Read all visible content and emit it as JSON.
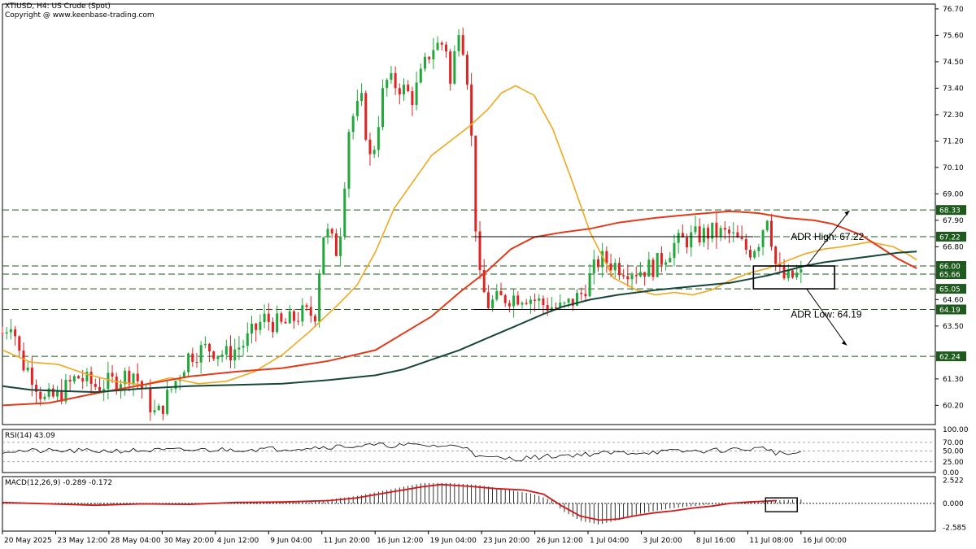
{
  "header": {
    "title": "XTIUSD, H4:  US Crude (Spot)",
    "copyright": "Copyright @ www.keenbase-trading.com"
  },
  "colors": {
    "bull": "#22a83a",
    "bear": "#e02424",
    "ema_fast": "#f0a81e",
    "ema_mid": "#e23a1a",
    "ema_slow": "#17463a",
    "grid_dash": "#1e5a1e",
    "box": "#000000",
    "rsi_line": "#000000",
    "macd_signal": "#d01818",
    "macd_hist": "#000000",
    "price_label_bg": "#1e5a1e",
    "price_label_text": "#ffffff"
  },
  "chart_data": [
    {
      "type": "candlestick",
      "panel": "price",
      "ylim": [
        59.4,
        76.9
      ],
      "y_ticks": [
        "76.70",
        "75.60",
        "74.50",
        "73.40",
        "72.30",
        "71.20",
        "70.10",
        "69.00",
        "67.90",
        "66.80",
        "65.60",
        "64.60",
        "63.50",
        "61.30",
        "60.20"
      ],
      "x_labels": [
        "20 May 2025",
        "23 May 12:00",
        "28 May 04:00",
        "30 May 20:00",
        "4 Jun 12:00",
        "9 Jun 04:00",
        "11 Jun 20:00",
        "16 Jun 12:00",
        "19 Jun 04:00",
        "23 Jun 20:00",
        "26 Jun 12:00",
        "1 Jul 04:00",
        "3 Jul 20:00",
        "8 Jul 16:00",
        "11 Jul 08:00",
        "16 Jul 00:00"
      ],
      "levels": [
        {
          "value": 68.33,
          "label": "68.33"
        },
        {
          "value": 67.22,
          "label": "67.22"
        },
        {
          "value": 66.0,
          "label": "66.00"
        },
        {
          "value": 65.66,
          "label": "65.66"
        },
        {
          "value": 65.05,
          "label": "65.05"
        },
        {
          "value": 64.19,
          "label": "64.19"
        },
        {
          "value": 62.24,
          "label": "62.24"
        }
      ],
      "annotations": [
        {
          "text": "ADR High: 67.22",
          "direction": "up"
        },
        {
          "text": "ADR Low: 64.19",
          "direction": "down"
        }
      ],
      "series": [
        {
          "role": "ema_fast",
          "points": [
            [
              0,
              62.5
            ],
            [
              0.03,
              62.0
            ],
            [
              0.06,
              61.9
            ],
            [
              0.09,
              61.5
            ],
            [
              0.12,
              61.2
            ],
            [
              0.15,
              61.05
            ],
            [
              0.18,
              61.35
            ],
            [
              0.21,
              61.1
            ],
            [
              0.24,
              61.2
            ],
            [
              0.27,
              61.6
            ],
            [
              0.3,
              62.3
            ],
            [
              0.33,
              63.3
            ],
            [
              0.36,
              64.4
            ],
            [
              0.38,
              65.2
            ],
            [
              0.4,
              66.6
            ],
            [
              0.42,
              68.4
            ],
            [
              0.44,
              69.5
            ],
            [
              0.46,
              70.6
            ],
            [
              0.48,
              71.2
            ],
            [
              0.5,
              71.8
            ],
            [
              0.52,
              72.5
            ],
            [
              0.535,
              73.2
            ],
            [
              0.55,
              73.5
            ],
            [
              0.57,
              73.1
            ],
            [
              0.59,
              71.7
            ],
            [
              0.61,
              69.6
            ],
            [
              0.63,
              67.4
            ],
            [
              0.655,
              65.5
            ],
            [
              0.68,
              65.0
            ],
            [
              0.7,
              64.8
            ],
            [
              0.72,
              64.9
            ],
            [
              0.74,
              64.8
            ],
            [
              0.76,
              65.0
            ],
            [
              0.78,
              65.4
            ],
            [
              0.8,
              65.7
            ],
            [
              0.82,
              65.9
            ],
            [
              0.84,
              66.2
            ],
            [
              0.86,
              66.5
            ],
            [
              0.88,
              66.7
            ],
            [
              0.9,
              66.8
            ],
            [
              0.93,
              67.0
            ],
            [
              0.955,
              66.8
            ],
            [
              0.97,
              66.5
            ],
            [
              0.98,
              66.25
            ]
          ]
        },
        {
          "role": "ema_mid",
          "points": [
            [
              0,
              60.2
            ],
            [
              0.05,
              60.3
            ],
            [
              0.1,
              60.7
            ],
            [
              0.15,
              61.05
            ],
            [
              0.2,
              61.4
            ],
            [
              0.25,
              61.6
            ],
            [
              0.3,
              61.75
            ],
            [
              0.35,
              62.05
            ],
            [
              0.4,
              62.5
            ],
            [
              0.43,
              63.2
            ],
            [
              0.46,
              63.9
            ],
            [
              0.49,
              64.9
            ],
            [
              0.52,
              65.8
            ],
            [
              0.545,
              66.7
            ],
            [
              0.57,
              67.2
            ],
            [
              0.6,
              67.4
            ],
            [
              0.63,
              67.55
            ],
            [
              0.66,
              67.8
            ],
            [
              0.7,
              68.0
            ],
            [
              0.74,
              68.15
            ],
            [
              0.78,
              68.28
            ],
            [
              0.81,
              68.2
            ],
            [
              0.84,
              68.0
            ],
            [
              0.87,
              67.9
            ],
            [
              0.89,
              67.75
            ],
            [
              0.92,
              67.3
            ],
            [
              0.94,
              66.8
            ],
            [
              0.96,
              66.3
            ],
            [
              0.98,
              65.9
            ]
          ]
        },
        {
          "role": "ema_slow",
          "points": [
            [
              0,
              61.0
            ],
            [
              0.03,
              60.85
            ],
            [
              0.06,
              60.8
            ],
            [
              0.1,
              60.75
            ],
            [
              0.15,
              60.9
            ],
            [
              0.2,
              61.0
            ],
            [
              0.25,
              61.05
            ],
            [
              0.3,
              61.1
            ],
            [
              0.35,
              61.25
            ],
            [
              0.4,
              61.45
            ],
            [
              0.43,
              61.7
            ],
            [
              0.46,
              62.1
            ],
            [
              0.49,
              62.5
            ],
            [
              0.52,
              63.0
            ],
            [
              0.55,
              63.5
            ],
            [
              0.58,
              64.0
            ],
            [
              0.6,
              64.3
            ],
            [
              0.63,
              64.6
            ],
            [
              0.66,
              64.8
            ],
            [
              0.7,
              65.0
            ],
            [
              0.74,
              65.15
            ],
            [
              0.78,
              65.3
            ],
            [
              0.8,
              65.45
            ],
            [
              0.82,
              65.6
            ],
            [
              0.84,
              65.8
            ],
            [
              0.86,
              66.0
            ],
            [
              0.88,
              66.15
            ],
            [
              0.9,
              66.25
            ],
            [
              0.93,
              66.4
            ],
            [
              0.96,
              66.55
            ],
            [
              0.98,
              66.6
            ]
          ]
        }
      ]
    },
    {
      "type": "line",
      "panel": "rsi",
      "title": "RSI(14) 43.09",
      "ylim": [
        0,
        100
      ],
      "y_ticks": [
        "100.00",
        "70.00",
        "50.00",
        "25.00",
        "0.00"
      ],
      "levels": [
        70,
        50,
        25
      ]
    },
    {
      "type": "bar",
      "panel": "macd",
      "title": "MACD(12,26,9) -0.289 -0.172",
      "ylim": [
        -3.0,
        2.9
      ],
      "y_ticks": [
        "2.522",
        "0.000",
        "-2.585"
      ],
      "signal": [
        [
          0,
          0.1
        ],
        [
          0.05,
          -0.05
        ],
        [
          0.1,
          -0.2
        ],
        [
          0.15,
          -0.05
        ],
        [
          0.2,
          -0.1
        ],
        [
          0.25,
          0.1
        ],
        [
          0.3,
          0.15
        ],
        [
          0.35,
          0.3
        ],
        [
          0.38,
          0.6
        ],
        [
          0.42,
          1.3
        ],
        [
          0.45,
          1.8
        ],
        [
          0.47,
          2.05
        ],
        [
          0.5,
          1.85
        ],
        [
          0.53,
          1.6
        ],
        [
          0.56,
          1.45
        ],
        [
          0.58,
          1.0
        ],
        [
          0.6,
          -0.3
        ],
        [
          0.62,
          -1.4
        ],
        [
          0.64,
          -1.8
        ],
        [
          0.66,
          -1.7
        ],
        [
          0.68,
          -1.3
        ],
        [
          0.7,
          -1.0
        ],
        [
          0.72,
          -0.8
        ],
        [
          0.74,
          -0.5
        ],
        [
          0.76,
          -0.3
        ],
        [
          0.78,
          0.0
        ],
        [
          0.8,
          0.15
        ],
        [
          0.83,
          0.3
        ],
        [
          0.86,
          0.45
        ],
        [
          0.89,
          0.4
        ],
        [
          0.91,
          0.2
        ],
        [
          0.93,
          0.05
        ],
        [
          0.95,
          0.0
        ],
        [
          0.97,
          -0.15
        ],
        [
          0.98,
          -0.2
        ]
      ],
      "histogram": [
        [
          0,
          0.1
        ],
        [
          0.1,
          -0.1
        ],
        [
          0.2,
          -0.05
        ],
        [
          0.3,
          0.1
        ],
        [
          0.34,
          0.3
        ],
        [
          0.38,
          0.8
        ],
        [
          0.42,
          1.6
        ],
        [
          0.45,
          2.2
        ],
        [
          0.48,
          2.2
        ],
        [
          0.51,
          2.0
        ],
        [
          0.54,
          1.5
        ],
        [
          0.57,
          1.0
        ],
        [
          0.59,
          0.3
        ],
        [
          0.6,
          -0.8
        ],
        [
          0.62,
          -1.9
        ],
        [
          0.64,
          -2.3
        ],
        [
          0.66,
          -1.8
        ],
        [
          0.68,
          -1.2
        ],
        [
          0.7,
          -0.8
        ],
        [
          0.72,
          -0.5
        ],
        [
          0.75,
          -0.2
        ],
        [
          0.78,
          0.1
        ],
        [
          0.82,
          0.3
        ],
        [
          0.86,
          0.45
        ],
        [
          0.9,
          0.3
        ],
        [
          0.93,
          0.1
        ],
        [
          0.96,
          -0.2
        ],
        [
          0.98,
          -0.3
        ]
      ]
    }
  ]
}
